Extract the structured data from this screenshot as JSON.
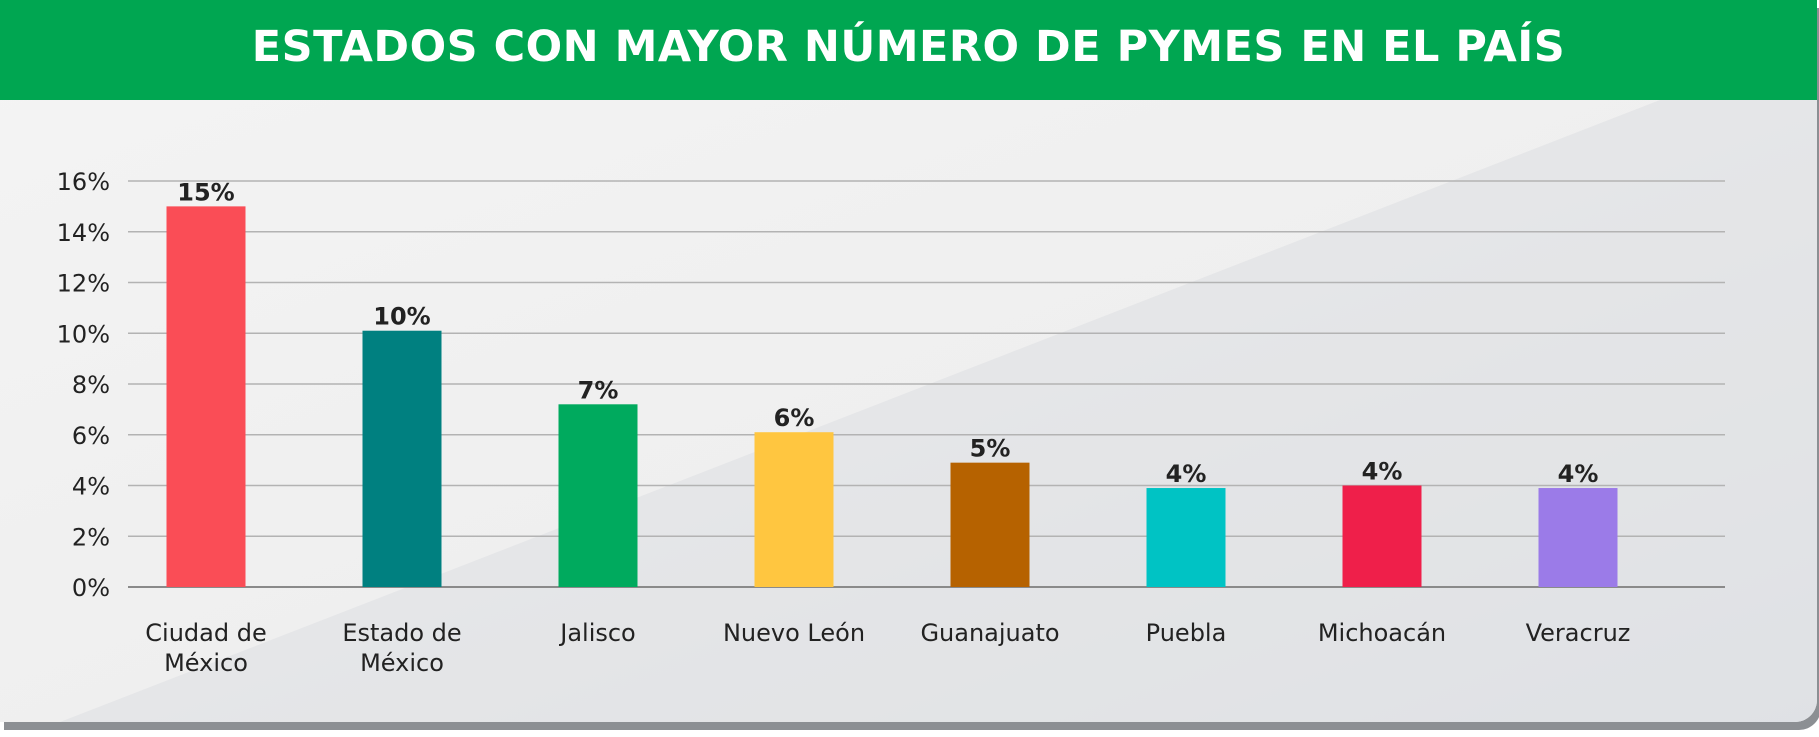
{
  "chart_data": {
    "type": "bar",
    "title": "ESTADOS CON MAYOR NÚMERO DE PYMES EN EL PAÍS",
    "xlabel": "",
    "ylabel": "",
    "ylim": [
      0,
      16
    ],
    "yticks": [
      0,
      2,
      4,
      6,
      8,
      10,
      12,
      14,
      16
    ],
    "ytick_labels": [
      "0%",
      "2%",
      "4%",
      "6%",
      "8%",
      "10%",
      "12%",
      "14%",
      "16%"
    ],
    "grid": true,
    "legend": "none",
    "categories": [
      "Ciudad de México",
      "Estado de México",
      "Jalisco",
      "Nuevo León",
      "Guanajuato",
      "Puebla",
      "Michoacán",
      "Veracruz"
    ],
    "category_lines": [
      [
        "Ciudad de",
        "México"
      ],
      [
        "Estado de",
        "México"
      ],
      [
        "Jalisco"
      ],
      [
        "Nuevo León"
      ],
      [
        "Guanajuato"
      ],
      [
        "Puebla"
      ],
      [
        "Michoacán"
      ],
      [
        "Veracruz"
      ]
    ],
    "values": [
      15,
      10.1,
      7.2,
      6.1,
      4.9,
      3.9,
      4.0,
      3.9
    ],
    "data_labels": [
      "15%",
      "10%",
      "7%",
      "6%",
      "5%",
      "4%",
      "4%",
      "4%"
    ],
    "colors": [
      "#fa4d56",
      "#008080",
      "#00aa5e",
      "#ffc640",
      "#b66200",
      "#00c3c4",
      "#ef1f4a",
      "#9b7be8"
    ]
  }
}
